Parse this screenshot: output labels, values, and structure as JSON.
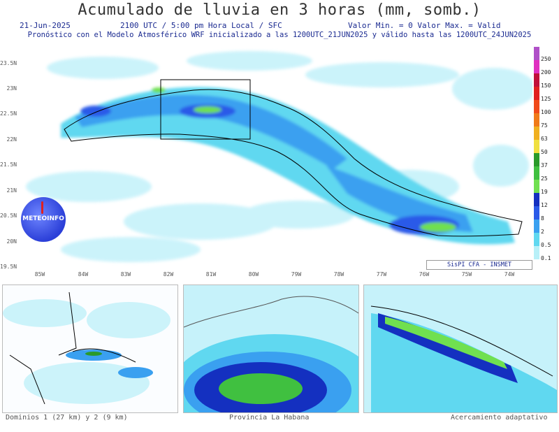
{
  "header": {
    "title": "Acumulado de lluvia en 3 horas (mm, somb.)",
    "date": "21-Jun-2025",
    "time": "2100 UTC / 5:00 pm Hora Local / SFC",
    "minmax": "Valor Min. = 0  Valor Max. = Valid",
    "forecast": "Pronóstico con el Modelo Atmosférico WRF inicializado a las 1200UTC_21JUN2025 y válido hasta las  1200UTC_24JUN2025"
  },
  "map": {
    "lat_labels": [
      "23.5N",
      "23N",
      "22.5N",
      "22N",
      "21.5N",
      "21N",
      "20.5N",
      "20N",
      "19.5N"
    ],
    "lon_labels": [
      "85W",
      "84W",
      "83W",
      "82W",
      "81W",
      "80W",
      "79W",
      "78W",
      "77W",
      "76W",
      "75W",
      "74W"
    ],
    "logo_text": "METEOINFO",
    "credit": "SisPI  CFA - INSMET"
  },
  "legend": {
    "items": [
      {
        "label": "250",
        "color": "#b050c8"
      },
      {
        "label": "200",
        "color": "#e030c0"
      },
      {
        "label": "150",
        "color": "#c0103a"
      },
      {
        "label": "125",
        "color": "#e02020"
      },
      {
        "label": "100",
        "color": "#f04a1a"
      },
      {
        "label": "75",
        "color": "#f07a18"
      },
      {
        "label": "63",
        "color": "#f0b020"
      },
      {
        "label": "50",
        "color": "#f0e040"
      },
      {
        "label": "37",
        "color": "#2a9a2a"
      },
      {
        "label": "25",
        "color": "#40c040"
      },
      {
        "label": "19",
        "color": "#70e050"
      },
      {
        "label": "12",
        "color": "#1430c0"
      },
      {
        "label": "8",
        "color": "#2a5ae8"
      },
      {
        "label": "2",
        "color": "#3aa0f0"
      },
      {
        "label": "0.5",
        "color": "#60d8f0"
      },
      {
        "label": "0.1",
        "color": "#b8f0f8"
      }
    ]
  },
  "panels": {
    "left_caption": "Dominios 1 (27 km) y 2 (9 km)",
    "middle_caption": "Provincia La Habana",
    "right_caption": "Acercamiento adaptativo"
  }
}
